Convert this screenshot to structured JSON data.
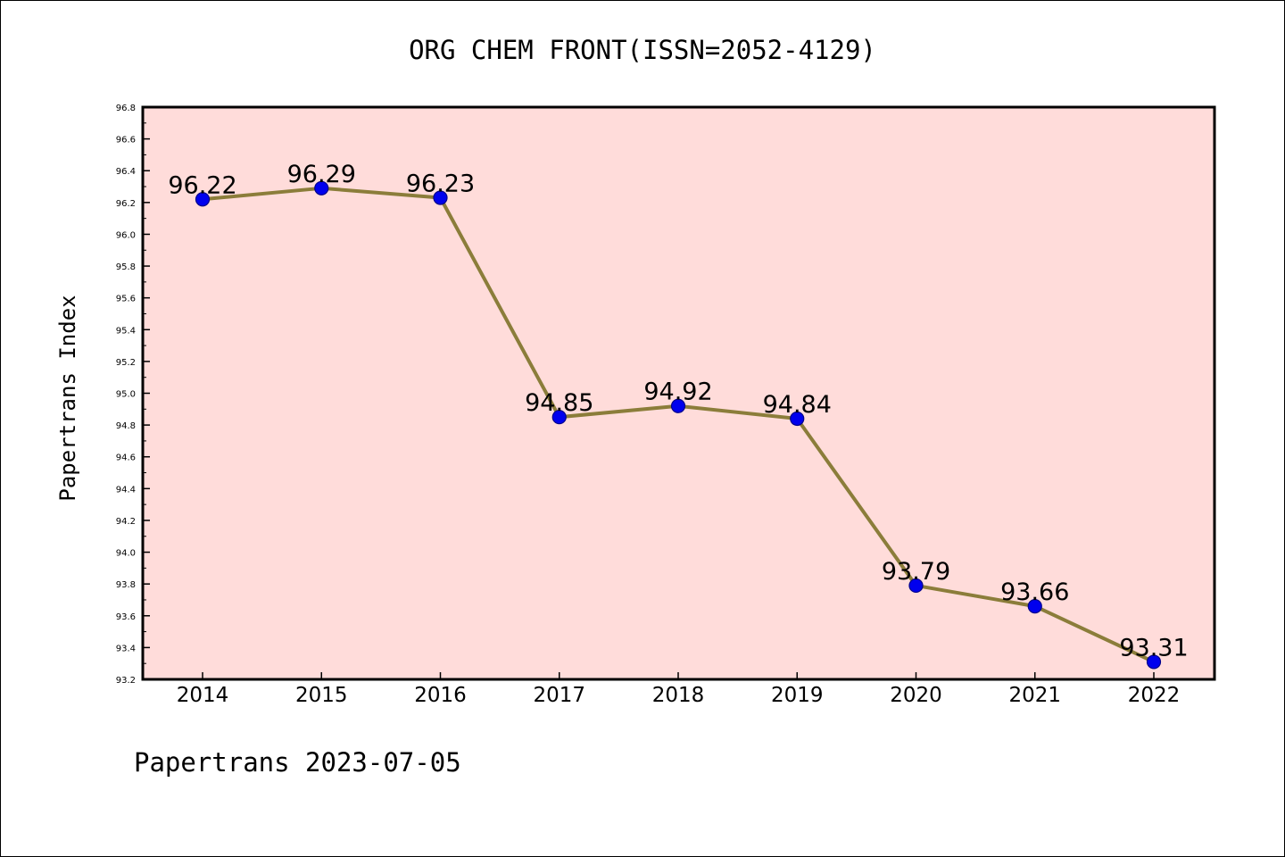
{
  "chart_data": {
    "type": "line",
    "title": "ORG CHEM FRONT(ISSN=2052-4129)",
    "ylabel": "Papertrans Index",
    "xlabel": "",
    "categories": [
      "2014",
      "2015",
      "2016",
      "2017",
      "2018",
      "2019",
      "2020",
      "2021",
      "2022"
    ],
    "series": [
      {
        "values": [
          96.22,
          96.29,
          96.23,
          94.85,
          94.92,
          94.84,
          93.79,
          93.66,
          93.31
        ],
        "labels": [
          "96.22",
          "96.29",
          "96.23",
          "94.85",
          "94.92",
          "94.84",
          "93.79",
          "93.66",
          "93.31"
        ]
      }
    ],
    "ylim": [
      93.2,
      96.8
    ],
    "yticks": [
      "93.2",
      "93.4",
      "93.6",
      "93.8",
      "94.0",
      "94.2",
      "94.4",
      "94.6",
      "94.8",
      "95.0",
      "95.2",
      "95.4",
      "95.6",
      "95.8",
      "96.0",
      "96.2",
      "96.4",
      "96.6",
      "96.8"
    ],
    "grid": false,
    "legend": "none",
    "colors": {
      "plot_background": "#FFDCDA",
      "line": "#8B7D3A",
      "marker": "#0000EE"
    }
  },
  "footer": "Papertrans 2023-07-05"
}
